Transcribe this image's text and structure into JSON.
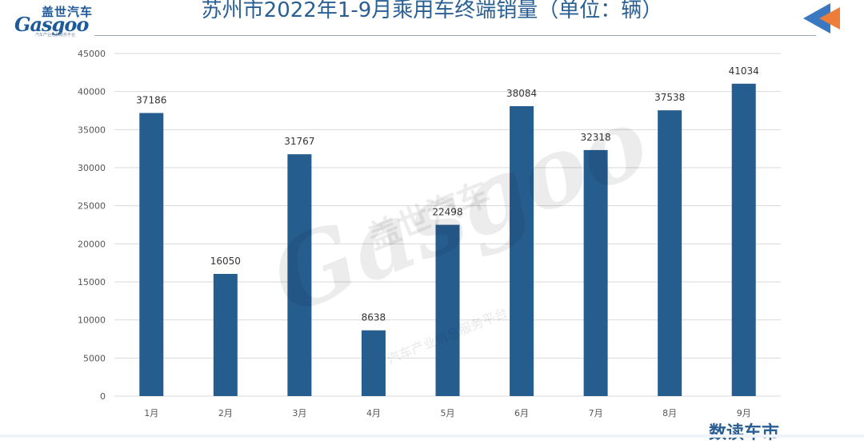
{
  "brand": {
    "name_cn": "盖世汽车",
    "name_en": "Gasgoo",
    "tagline": "汽车产业信息服务平台"
  },
  "watermark": {
    "name_cn": "盖世汽车",
    "name_en": "Gasgoo",
    "tagline": "汽车产业信息服务平台"
  },
  "footer_logo": "数读车市",
  "colors": {
    "bar": "#265d8f",
    "title": "#2a5f93",
    "grid": "#d9d9d9",
    "accent_orange": "#ef7d3a",
    "accent_blue": "#3a79c2"
  },
  "chart_data": {
    "type": "bar",
    "title": "苏州市2022年1-9月乘用车终端销量（单位：辆）",
    "categories": [
      "1月",
      "2月",
      "3月",
      "4月",
      "5月",
      "6月",
      "7月",
      "8月",
      "9月"
    ],
    "values": [
      37186,
      16050,
      31767,
      8638,
      22498,
      38084,
      32318,
      37538,
      41034
    ],
    "ylim": [
      0,
      45000
    ],
    "yticks": [
      0,
      5000,
      10000,
      15000,
      20000,
      25000,
      30000,
      35000,
      40000,
      45000
    ],
    "grid": true,
    "legend": "none",
    "data_labels": true
  }
}
